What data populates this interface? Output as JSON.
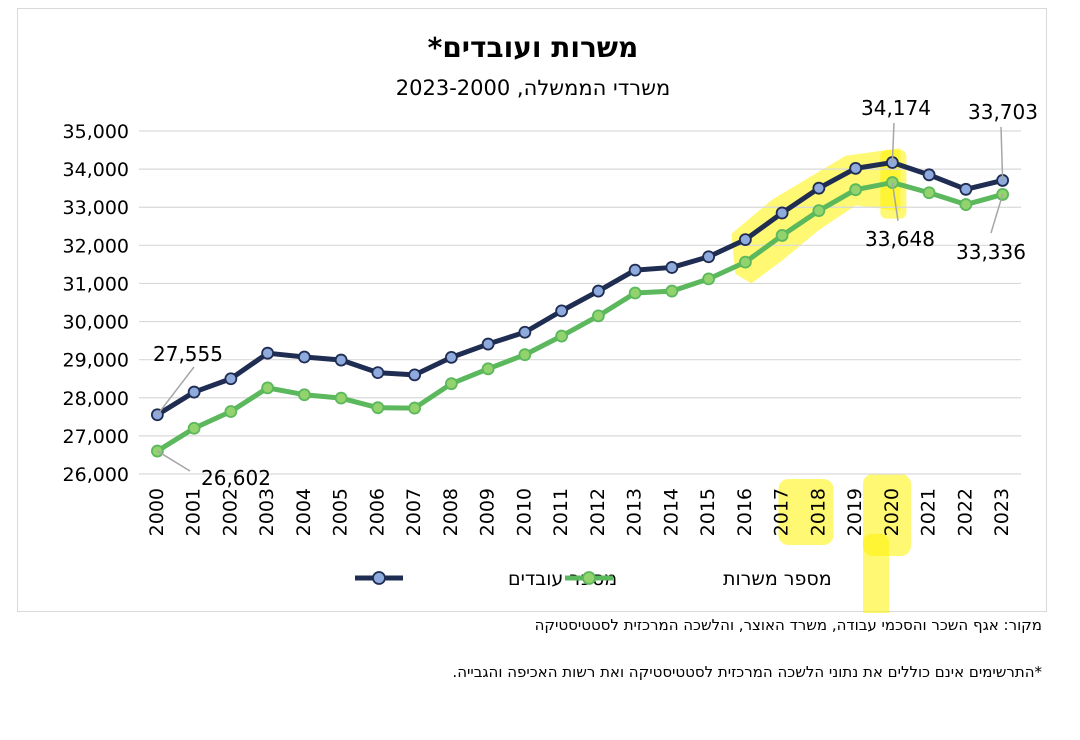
{
  "chart_data": {
    "type": "line",
    "title": "משרות ועובדים*",
    "subtitle": "משרדי הממשלה, 2023-2000",
    "categories": [
      "2000",
      "2001",
      "2002",
      "2003",
      "2004",
      "2005",
      "2006",
      "2007",
      "2008",
      "2009",
      "2010",
      "2011",
      "2012",
      "2013",
      "2014",
      "2015",
      "2016",
      "2017",
      "2018",
      "2019",
      "2020",
      "2021",
      "2022",
      "2023"
    ],
    "series": [
      {
        "name": "מספר עובדים",
        "color": "#1f2d52",
        "marker_color": "#8faadc",
        "values": [
          27555,
          28150,
          28500,
          29170,
          29070,
          28990,
          28660,
          28600,
          29060,
          29410,
          29720,
          30280,
          30800,
          31350,
          31420,
          31700,
          32150,
          32850,
          33500,
          34020,
          34174,
          33850,
          33470,
          33703
        ]
      },
      {
        "name": "מספר משרות",
        "color": "#5cb85c",
        "marker_color": "#92d36e",
        "values": [
          26602,
          27200,
          27640,
          28260,
          28080,
          27990,
          27740,
          27730,
          28370,
          28760,
          29130,
          29620,
          30150,
          30750,
          30800,
          31120,
          31560,
          32260,
          32910,
          33460,
          33648,
          33380,
          33070,
          33336
        ]
      }
    ],
    "yticks": [
      "26,000",
      "27,000",
      "28,000",
      "29,000",
      "30,000",
      "31,000",
      "32,000",
      "33,000",
      "34,000",
      "35,000"
    ],
    "ylim": [
      26000,
      35000
    ],
    "grid": true,
    "legend": "bottom",
    "annotations": [
      "27,555",
      "26,602",
      "34,174",
      "33,648",
      "33,703",
      "33,336"
    ],
    "highlight_color": "#fff200"
  },
  "source": "מקור: אגף השכר והסכמי עבודה, משרד האוצר, והלשכה המרכזית לסטטיסטיקה",
  "footnote": "*התרשימים אינם כוללים את נתוני הלשכה המרכזית לסטטיסטיקה ואת רשות האכיפה והגבייה."
}
